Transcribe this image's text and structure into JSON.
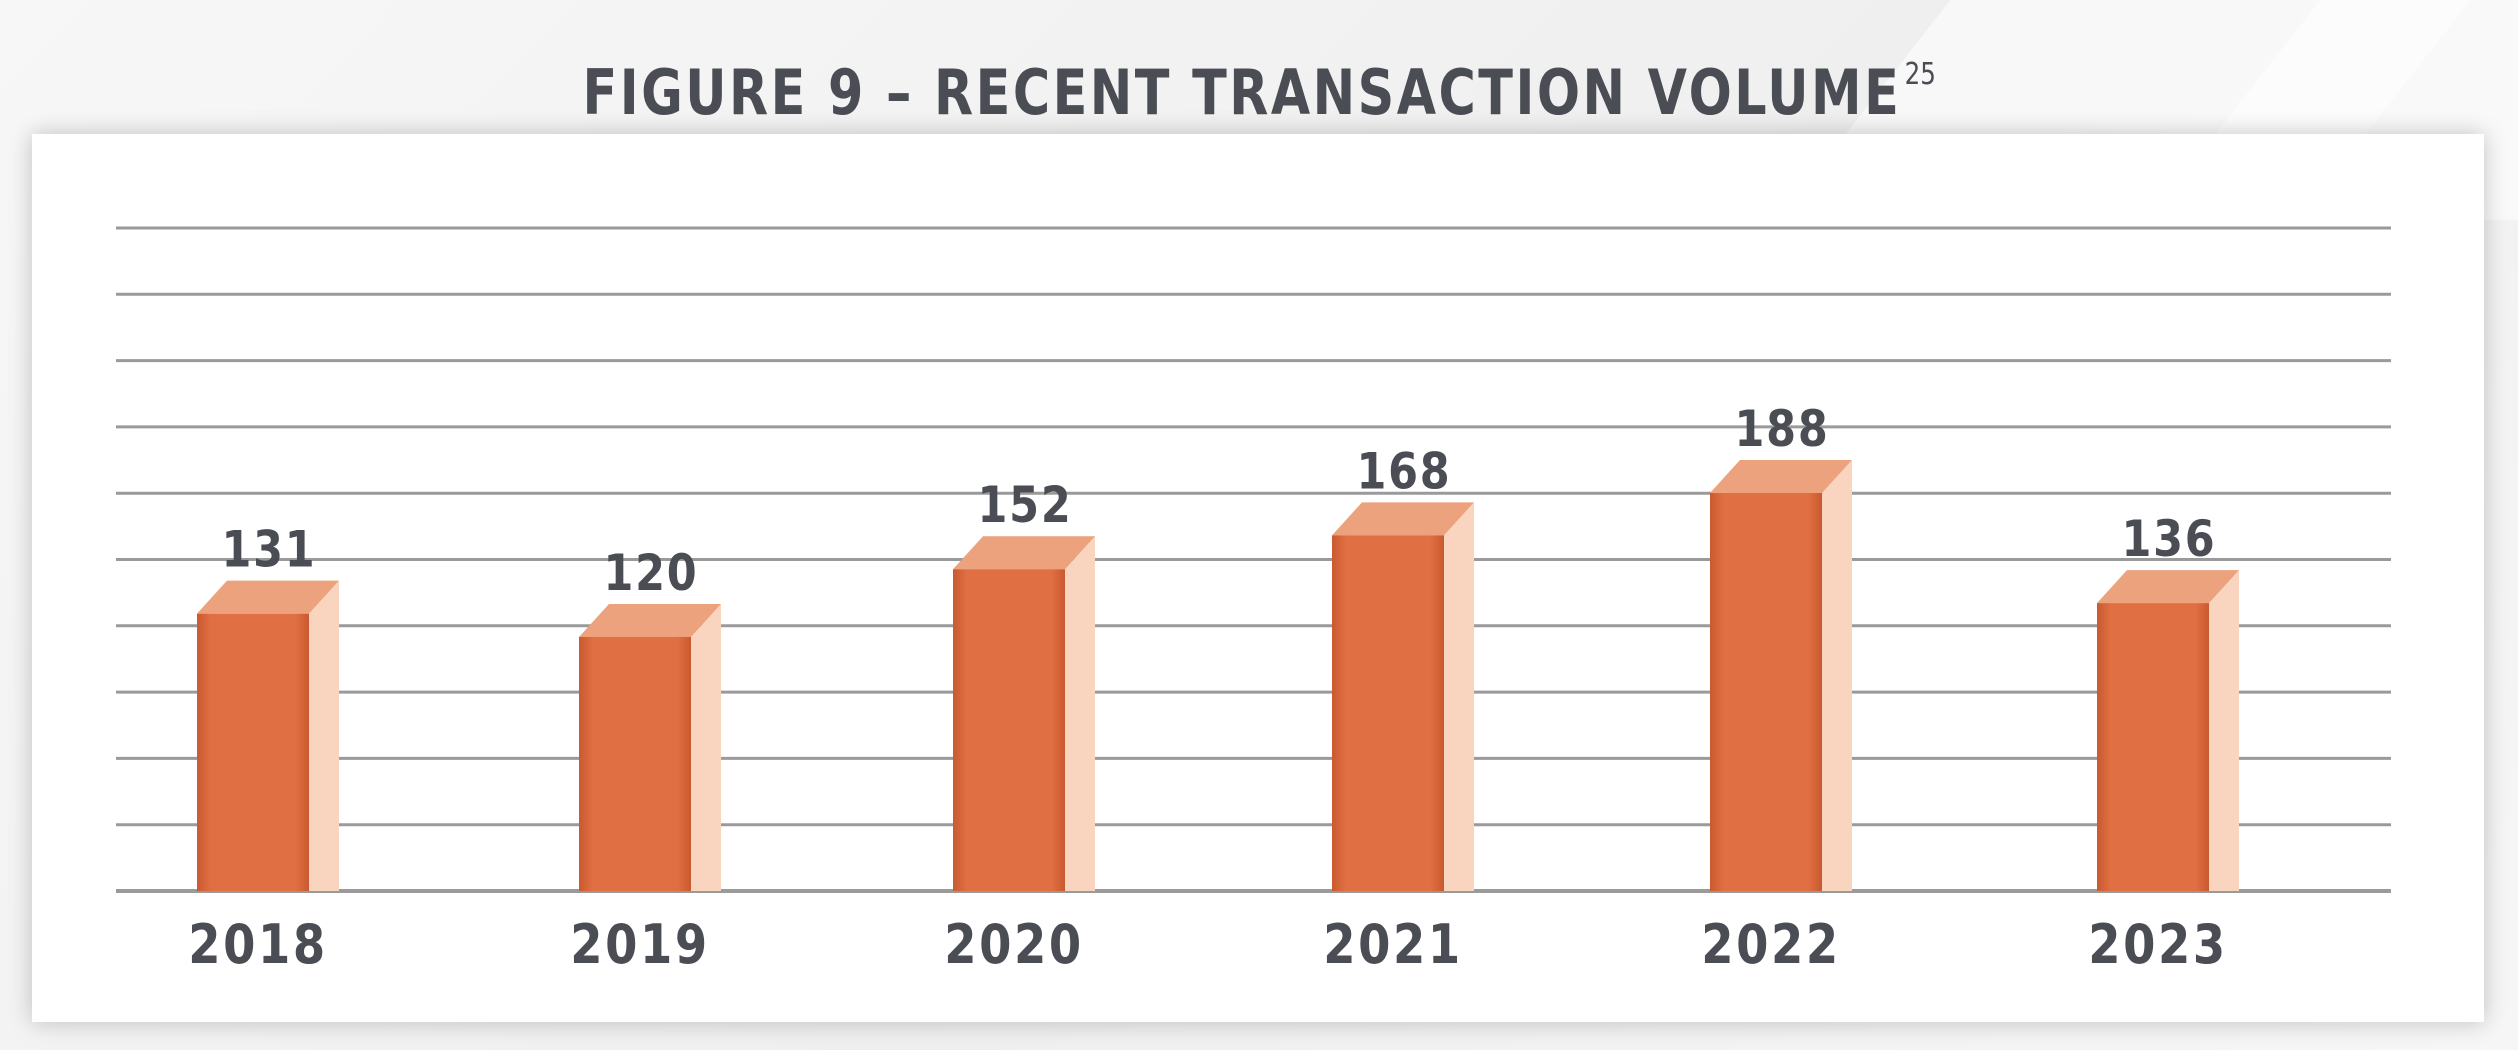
{
  "title": {
    "text": "FIGURE 9 – RECENT TRANSACTION VOLUME",
    "footnote": "25"
  },
  "colors": {
    "bar_front": "#e06f43",
    "bar_top": "#eca27d",
    "bar_side": "#f9d5bf",
    "grid": "#9a9a9a",
    "text": "#4b4d55"
  },
  "chart_data": {
    "type": "bar",
    "title": "FIGURE 9 – RECENT TRANSACTION VOLUME",
    "xlabel": "",
    "ylabel": "",
    "categories": [
      "2018",
      "2019",
      "2020",
      "2021",
      "2022",
      "2023"
    ],
    "values": [
      131,
      120,
      152,
      168,
      188,
      136
    ],
    "data_labels": [
      "131",
      "120",
      "152",
      "168",
      "188",
      "136"
    ],
    "style": "3d-columns",
    "grid": true,
    "legend": "none"
  }
}
